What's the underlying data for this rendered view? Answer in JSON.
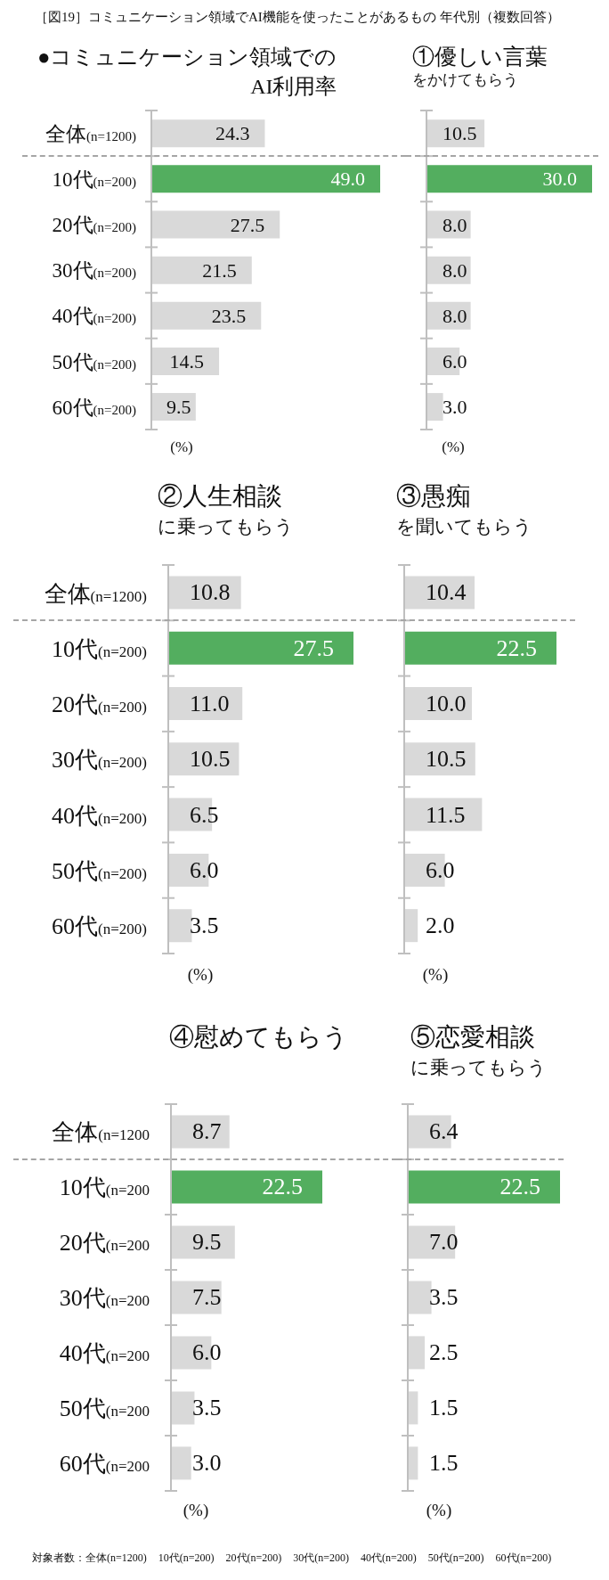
{
  "chart_data": [
    {
      "type": "bar",
      "orientation": "horizontal",
      "title": "●コミュニケーション領域での\nAI利用率",
      "xlabel": "(%)",
      "categories": [
        "全体(n=1200)",
        "10代(n=200)",
        "20代(n=200)",
        "30代(n=200)",
        "40代(n=200)",
        "50代(n=200)",
        "60代(n=200)"
      ],
      "values": [
        24.3,
        49.0,
        27.5,
        21.5,
        23.5,
        14.5,
        9.5
      ],
      "value_labels": [
        "24.3",
        "49.0",
        "27.5",
        "21.5",
        "23.5",
        "14.5",
        "9.5"
      ],
      "colors": [
        "#d9d9d9",
        "#53ae5f",
        "#d9d9d9",
        "#d9d9d9",
        "#d9d9d9",
        "#d9d9d9",
        "#d9d9d9"
      ],
      "tick_labels": "y",
      "annotations": [
        "［図19］コミュニケーション領域でAI機能を使ったことがあるもの 年代別（複数回答）"
      ]
    },
    {
      "type": "bar",
      "orientation": "horizontal",
      "title": "①優しい言葉",
      "subtitle": "をかけてもらう",
      "xlabel": "(%)",
      "categories": [
        null,
        null,
        null,
        null,
        null,
        null,
        null
      ],
      "values": [
        10.5,
        30.0,
        8.0,
        8.0,
        8.0,
        6.0,
        3.0
      ],
      "value_labels": [
        "10.5",
        "30.0",
        "8.0",
        "8.0",
        "8.0",
        "6.0",
        "3.0"
      ],
      "colors": [
        "#d9d9d9",
        "#53ae5f",
        "#d9d9d9",
        "#d9d9d9",
        "#d9d9d9",
        "#d9d9d9",
        "#d9d9d9"
      ],
      "tick_labels": false
    },
    {
      "type": "bar",
      "orientation": "horizontal",
      "title": "②人生相談",
      "subtitle": "に乗ってもらう",
      "xlabel": "(%)",
      "categories": [
        "全体(n=1200)",
        "10代(n=200)",
        "20代(n=200)",
        "30代(n=200)",
        "40代(n=200)",
        "50代(n=200)",
        "60代(n=200)"
      ],
      "values": [
        10.8,
        27.5,
        11.0,
        10.5,
        6.5,
        6.0,
        3.5
      ],
      "value_labels": [
        "10.8",
        "27.5",
        "11.0",
        "10.5",
        "6.5",
        "6.0",
        "3.5"
      ],
      "colors": [
        "#d9d9d9",
        "#53ae5f",
        "#d9d9d9",
        "#d9d9d9",
        "#d9d9d9",
        "#d9d9d9",
        "#d9d9d9"
      ],
      "tick_labels": "y"
    },
    {
      "type": "bar",
      "orientation": "horizontal",
      "title": "③愚痴",
      "subtitle": "を聞いてもらう",
      "xlabel": "(%)",
      "categories": [
        null,
        null,
        null,
        null,
        null,
        null,
        null
      ],
      "values": [
        10.4,
        22.5,
        10.0,
        10.5,
        11.5,
        6.0,
        2.0
      ],
      "value_labels": [
        "10.4",
        "22.5",
        "10.0",
        "10.5",
        "11.5",
        "6.0",
        "2.0"
      ],
      "colors": [
        "#d9d9d9",
        "#53ae5f",
        "#d9d9d9",
        "#d9d9d9",
        "#d9d9d9",
        "#d9d9d9",
        "#d9d9d9"
      ],
      "tick_labels": false
    },
    {
      "type": "bar",
      "orientation": "horizontal",
      "title": "④慰めてもらう",
      "xlabel": "(%)",
      "categories": [
        "全体(n=1200",
        "10代(n=200",
        "20代(n=200",
        "30代(n=200",
        "40代(n=200",
        "50代(n=200",
        "60代(n=200"
      ],
      "values": [
        8.7,
        22.5,
        9.5,
        7.5,
        6.0,
        3.5,
        3.0
      ],
      "value_labels": [
        "8.7",
        "22.5",
        "9.5",
        "7.5",
        "6.0",
        "3.5",
        "3.0"
      ],
      "colors": [
        "#d9d9d9",
        "#53ae5f",
        "#d9d9d9",
        "#d9d9d9",
        "#d9d9d9",
        "#d9d9d9",
        "#d9d9d9"
      ],
      "tick_labels": "y"
    },
    {
      "type": "bar",
      "orientation": "horizontal",
      "title": "⑤恋愛相談",
      "subtitle": "に乗ってもらう",
      "xlabel": "(%)",
      "categories": [
        null,
        null,
        null,
        null,
        null,
        null,
        null
      ],
      "values": [
        6.4,
        22.5,
        7.0,
        3.5,
        2.5,
        1.5,
        1.5
      ],
      "value_labels": [
        "6.4",
        "22.5",
        "7.0",
        "3.5",
        "2.5",
        "1.5",
        "1.5"
      ],
      "colors": [
        "#d9d9d9",
        "#53ae5f",
        "#d9d9d9",
        "#d9d9d9",
        "#d9d9d9",
        "#d9d9d9",
        "#d9d9d9"
      ],
      "tick_labels": false,
      "annotations": [
        "対象者数：全体(n=1200) 10代(n=200) 20代(n=200) 30代(n=200) 40代(n=200) 50代(n=200) 60代(n=200)"
      ]
    }
  ]
}
